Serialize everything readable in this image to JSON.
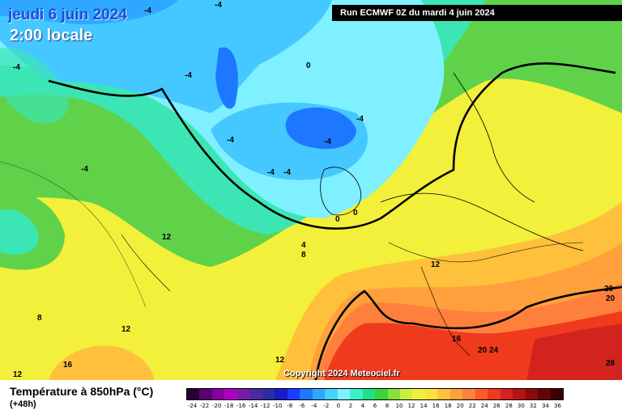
{
  "header": {
    "date": "jeudi 6 juin 2024",
    "time": "2:00 locale",
    "run": "Run ECMWF 0Z du mardi 4 juin 2024"
  },
  "copyright": "Copyright 2024 Meteociel.fr",
  "legend": {
    "title": "Température à 850hPa (°C)",
    "subtitle": "(+48h)",
    "ticks": [
      "-24",
      "-22",
      "-20",
      "-18",
      "-16",
      "-14",
      "-12",
      "-10",
      "-8",
      "-6",
      "-4",
      "-2",
      "0",
      "2",
      "4",
      "6",
      "8",
      "10",
      "12",
      "14",
      "16",
      "18",
      "20",
      "22",
      "24",
      "26",
      "28",
      "30",
      "32",
      "34",
      "36"
    ],
    "colors": [
      "#2a0033",
      "#5c006e",
      "#8a00a0",
      "#b000c6",
      "#7a1aa8",
      "#4b2b9c",
      "#2c2ca8",
      "#1a1ac8",
      "#1c3cff",
      "#1e78ff",
      "#2ea8ff",
      "#45d2ff",
      "#7ef0ff",
      "#3cf0c8",
      "#22e08c",
      "#3cd23c",
      "#8ae03c",
      "#c8f03c",
      "#f0f03c",
      "#ffe03c",
      "#ffc03c",
      "#ffa03c",
      "#ff803c",
      "#ff5a28",
      "#f03a1e",
      "#d2231e",
      "#b41414",
      "#8c0a0a",
      "#640505",
      "#3c0000"
    ]
  },
  "isotherm_labels": [
    "-4",
    "-4",
    "-4",
    "-4",
    "-4",
    "-4",
    "-4",
    "0",
    "-4",
    "-4",
    "-4",
    "0",
    "0",
    "4",
    "8",
    "12",
    "12",
    "8",
    "12",
    "12",
    "16",
    "12",
    "16",
    "20",
    "24",
    "20",
    "20",
    "28"
  ]
}
